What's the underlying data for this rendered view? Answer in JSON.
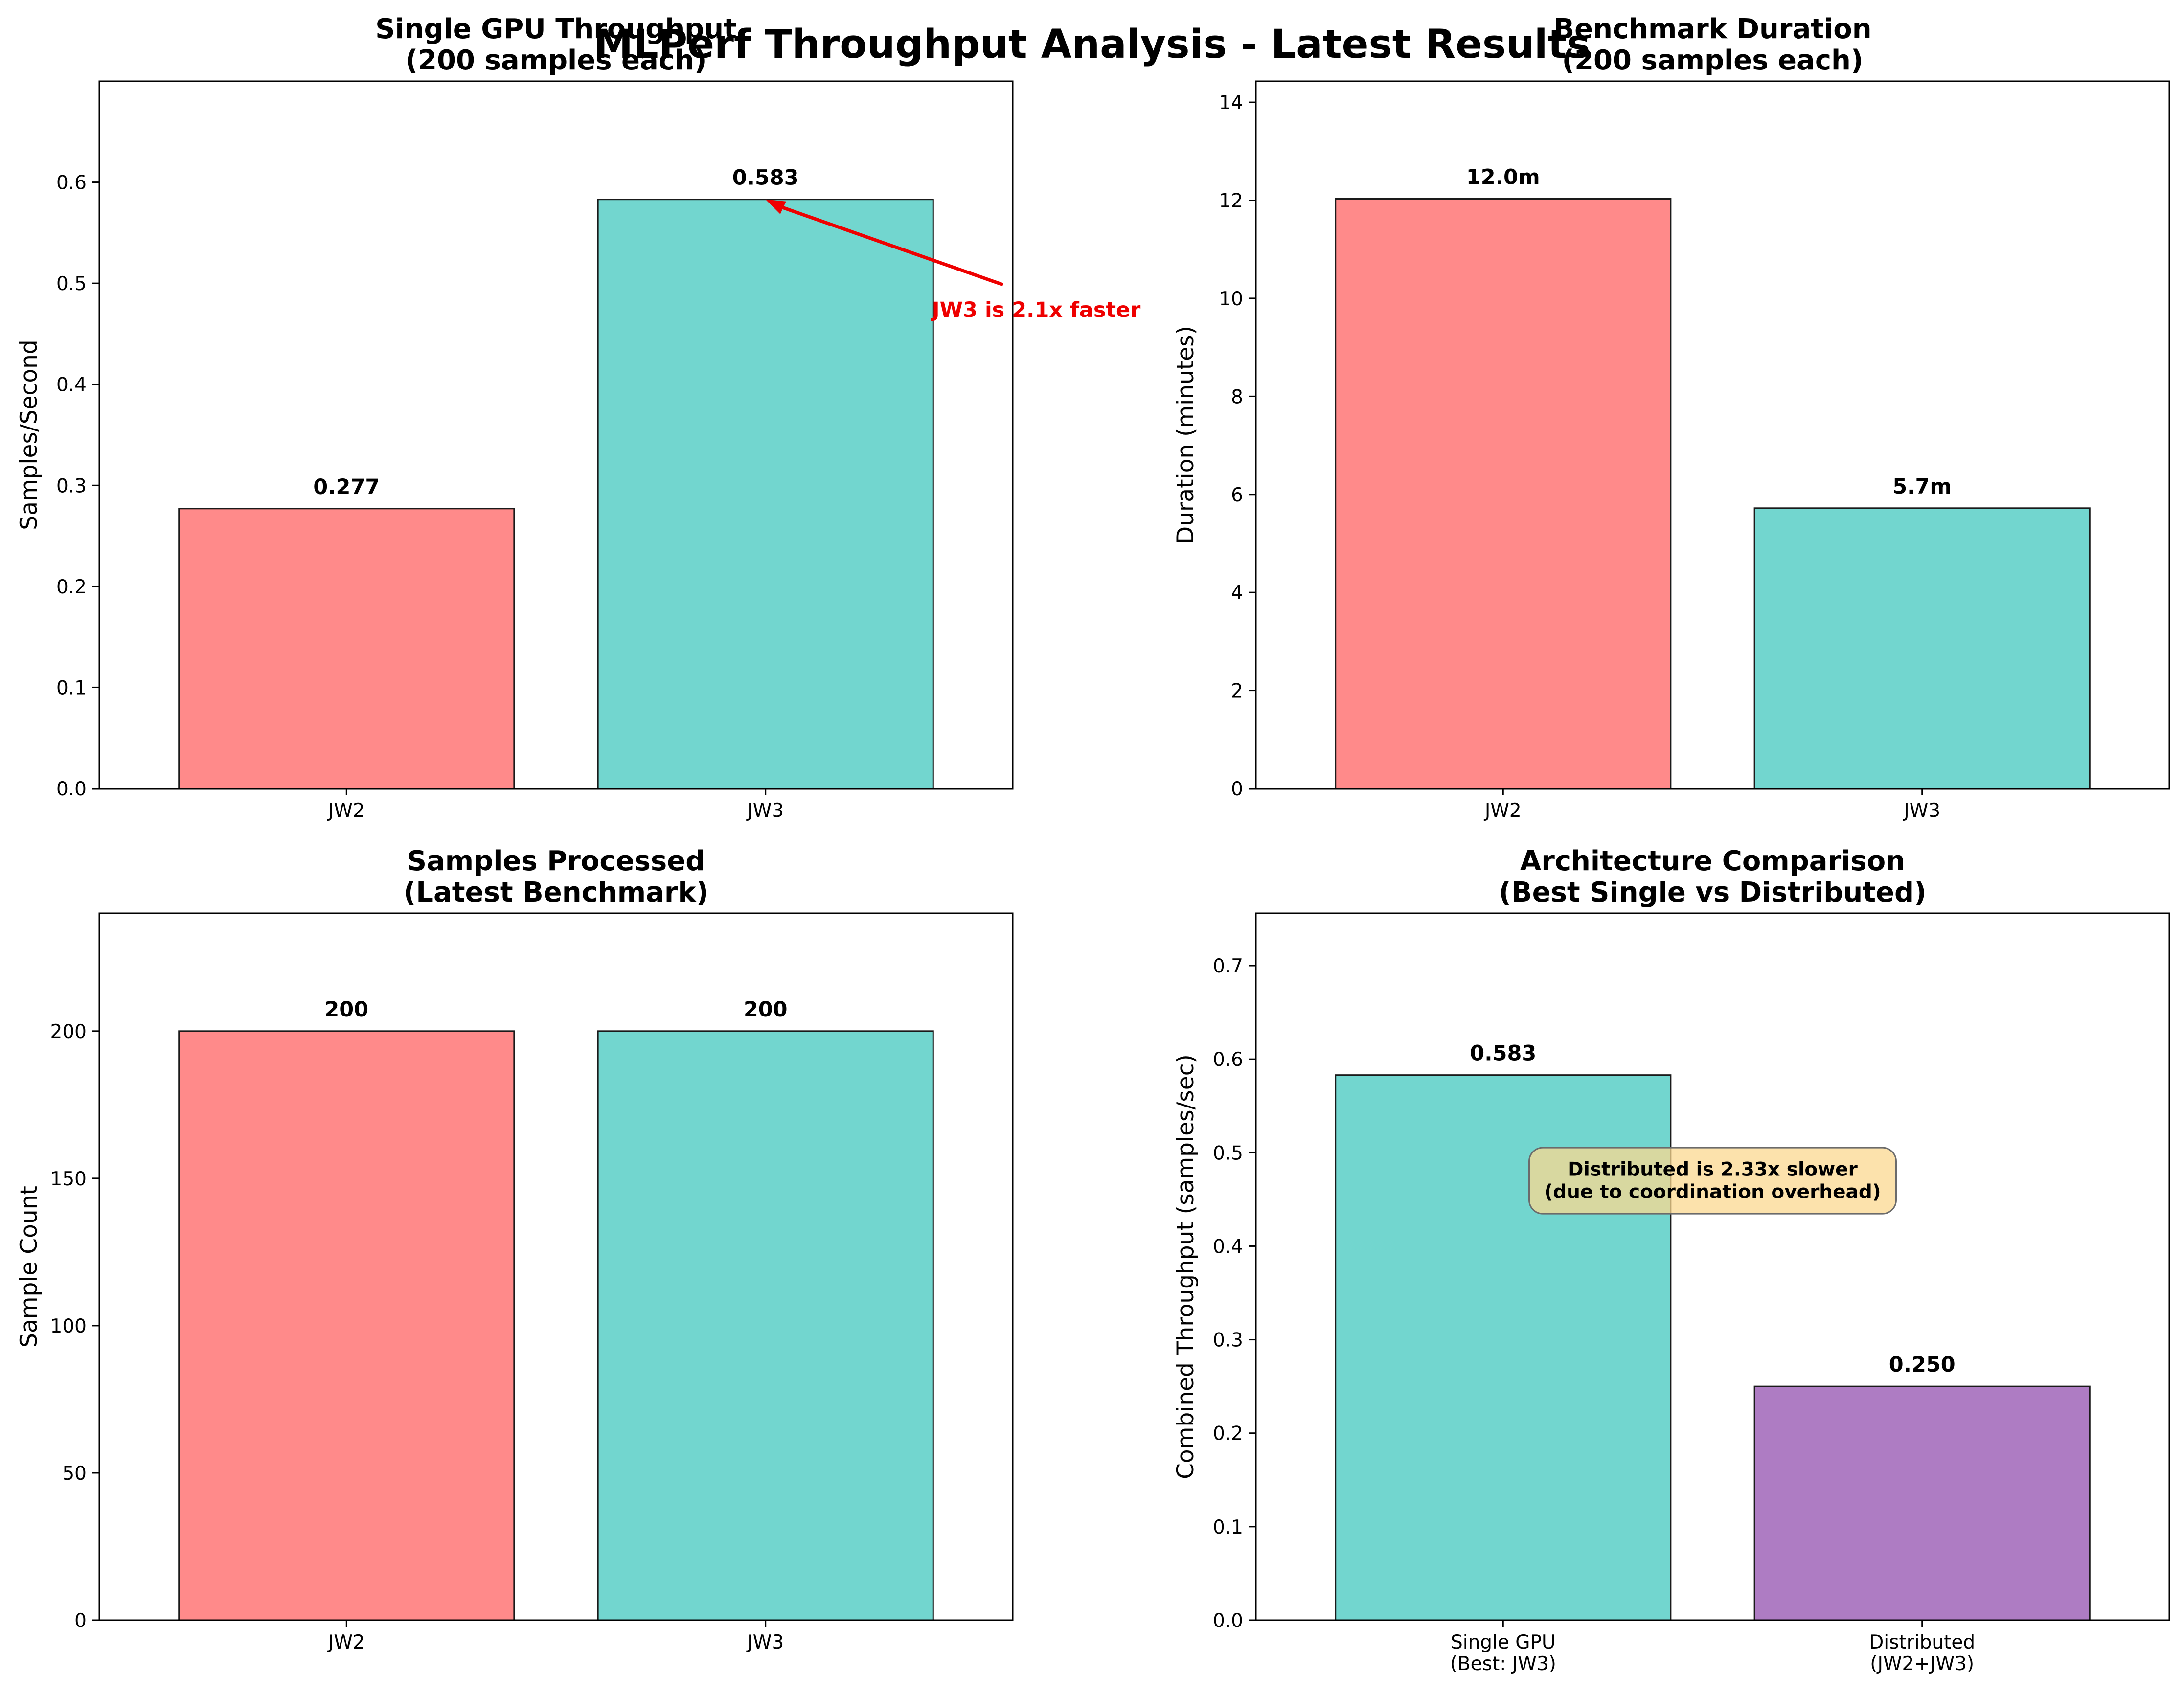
{
  "figure": {
    "title": "MLPerf Throughput Analysis - Latest Results"
  },
  "colors": {
    "jw2": "#ff8a8a",
    "jw3": "#72d6cf",
    "distributed": "#ae7cc3",
    "edge": "#1a1a1a",
    "annotation_red": "#ee0000",
    "box_fill": "#fbd890"
  },
  "chart_data": [
    {
      "type": "bar",
      "title": "Single GPU Throughput\n(200 samples each)",
      "categories": [
        "JW2",
        "JW3"
      ],
      "values": [
        0.277,
        0.583
      ],
      "value_labels": [
        "0.277",
        "0.583"
      ],
      "ylabel": "Samples/Second",
      "xlabel": "",
      "ylim": [
        0,
        0.7
      ],
      "yticks": [
        0.0,
        0.1,
        0.2,
        0.3,
        0.4,
        0.5,
        0.6
      ],
      "ytick_labels": [
        "0.0",
        "0.1",
        "0.2",
        "0.3",
        "0.4",
        "0.5",
        "0.6"
      ],
      "bar_colors": [
        "jw2",
        "jw3"
      ],
      "annotation": {
        "text": "JW3 is 2.1x faster",
        "style": "red-arrow",
        "points_to": {
          "category": "JW3",
          "value": 0.583
        }
      }
    },
    {
      "type": "bar",
      "title": "Benchmark Duration\n(200 samples each)",
      "categories": [
        "JW2",
        "JW3"
      ],
      "values": [
        12.03,
        5.72
      ],
      "value_labels": [
        "12.0m",
        "5.7m"
      ],
      "ylabel": "Duration (minutes)",
      "xlabel": "",
      "ylim": [
        0,
        14.43
      ],
      "yticks": [
        0,
        2,
        4,
        6,
        8,
        10,
        12,
        14
      ],
      "ytick_labels": [
        "0",
        "2",
        "4",
        "6",
        "8",
        "10",
        "12",
        "14"
      ],
      "bar_colors": [
        "jw2",
        "jw3"
      ]
    },
    {
      "type": "bar",
      "title": "Samples Processed\n(Latest Benchmark)",
      "categories": [
        "JW2",
        "JW3"
      ],
      "values": [
        200,
        200
      ],
      "value_labels": [
        "200",
        "200"
      ],
      "ylabel": "Sample Count",
      "xlabel": "",
      "ylim": [
        0,
        240
      ],
      "yticks": [
        0,
        50,
        100,
        150,
        200
      ],
      "ytick_labels": [
        "0",
        "50",
        "100",
        "150",
        "200"
      ],
      "bar_colors": [
        "jw2",
        "jw3"
      ]
    },
    {
      "type": "bar",
      "title": "Architecture Comparison\n(Best Single vs Distributed)",
      "categories": [
        "Single GPU\n(Best: JW3)",
        "Distributed\n(JW2+JW3)"
      ],
      "values": [
        0.583,
        0.25
      ],
      "value_labels": [
        "0.583",
        "0.250"
      ],
      "ylabel": "Combined Throughput (samples/sec)",
      "xlabel": "",
      "ylim": [
        0,
        0.756
      ],
      "yticks": [
        0.0,
        0.1,
        0.2,
        0.3,
        0.4,
        0.5,
        0.6,
        0.7
      ],
      "ytick_labels": [
        "0.0",
        "0.1",
        "0.2",
        "0.3",
        "0.4",
        "0.5",
        "0.6",
        "0.7"
      ],
      "bar_colors": [
        "jw3",
        "distributed"
      ],
      "annotation": {
        "text": "Distributed is 2.33x slower\n(due to coordination overhead)",
        "style": "rounded-box",
        "anchor": {
          "category_index": 0.5,
          "value": 0.47
        }
      }
    }
  ]
}
